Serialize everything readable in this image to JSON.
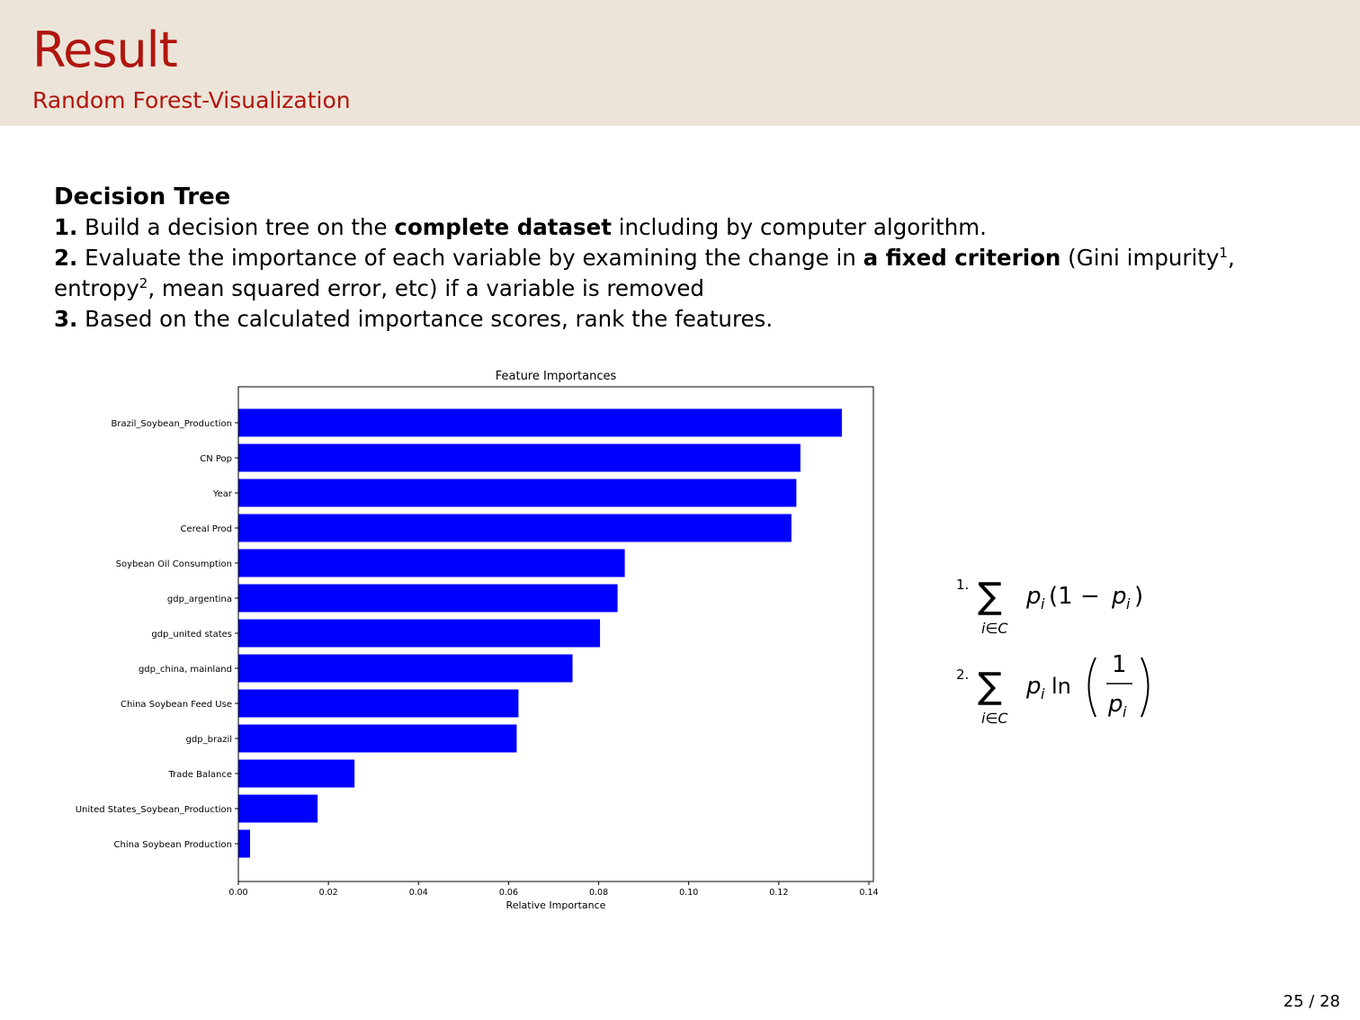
{
  "header": {
    "title": "Result",
    "subtitle": "Random Forest-Visualization"
  },
  "body": {
    "heading": "Decision Tree",
    "item1_num": "1.",
    "item1_a": "Build a decision tree on the",
    "item1_bold": "complete dataset",
    "item1_b": "including by computer algorithm.",
    "item2_num": "2.",
    "item2_a": "Evaluate the importance of each variable by examining the change in",
    "item2_bold": "a fixed criterion",
    "item2_b": "(Gini impurity",
    "item2_sup1": "1",
    "item2_c": ",",
    "item2_d": "entropy",
    "item2_sup2": "2",
    "item2_e": ", mean squared error, etc) if a variable is removed",
    "item3_num": "3.",
    "item3_a": "Based on the calculated importance scores, rank the features."
  },
  "chart_data": {
    "type": "bar",
    "orientation": "horizontal",
    "title": "Feature Importances",
    "xlabel": "Relative Importance",
    "ylabel": "",
    "xlim": [
      0,
      0.141
    ],
    "xticks": [
      "0.00",
      "0.02",
      "0.04",
      "0.06",
      "0.08",
      "0.10",
      "0.12",
      "0.14"
    ],
    "bar_color": "#0000ff",
    "categories": [
      "Brazil_Soybean_Production",
      "CN Pop",
      "Year",
      "Cereal Prod",
      "Soybean Oil Consumption",
      "gdp_argentina",
      "gdp_united states",
      "gdp_china, mainland",
      "China Soybean Feed Use",
      "gdp_brazil",
      "Trade Balance",
      "United States_Soybean_Production",
      "China Soybean Production"
    ],
    "values": [
      0.134,
      0.1248,
      0.1239,
      0.1228,
      0.0858,
      0.0842,
      0.0803,
      0.0742,
      0.0622,
      0.0618,
      0.0258,
      0.0176,
      0.0026
    ]
  },
  "formulas": {
    "f1_num": "1.",
    "f1_sum_sub": "i∈C",
    "f1_expr_a": "p",
    "f1_expr_i": "i",
    "f1_expr_b": "(1 − ",
    "f1_expr_c": "p",
    "f1_expr_d": "i",
    "f1_expr_e": ")",
    "f2_num": "2.",
    "f2_sum_sub": "i∈C",
    "f2_p": "p",
    "f2_i": "i",
    "f2_ln": "ln",
    "f2_one": "1",
    "f2_den_p": "p",
    "f2_den_i": "i"
  },
  "footer": {
    "page": "25 / 28"
  }
}
